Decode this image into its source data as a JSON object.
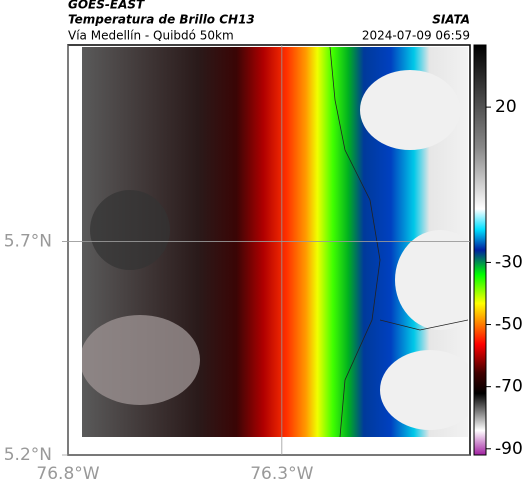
{
  "header": {
    "title": "GOES-EAST",
    "subtitle": "Temperatura de Brillo CH13",
    "source": "SIATA",
    "route": "Vía Medellín - Quibdó 50km",
    "timestamp": "2024-07-09 06:59"
  },
  "map": {
    "xlim": [
      -76.8,
      -75.86
    ],
    "ylim": [
      5.2,
      6.16
    ],
    "xticks": [
      {
        "value": -76.8,
        "label": "76.8°W"
      },
      {
        "value": -76.3,
        "label": "76.3°W"
      }
    ],
    "yticks": [
      {
        "value": 5.2,
        "label": "5.2°N"
      },
      {
        "value": 5.7,
        "label": "5.7°N"
      }
    ]
  },
  "colorbar": {
    "lim": [
      -92,
      40
    ],
    "ticks": [
      20,
      -30,
      -50,
      -70,
      -90
    ]
  }
}
